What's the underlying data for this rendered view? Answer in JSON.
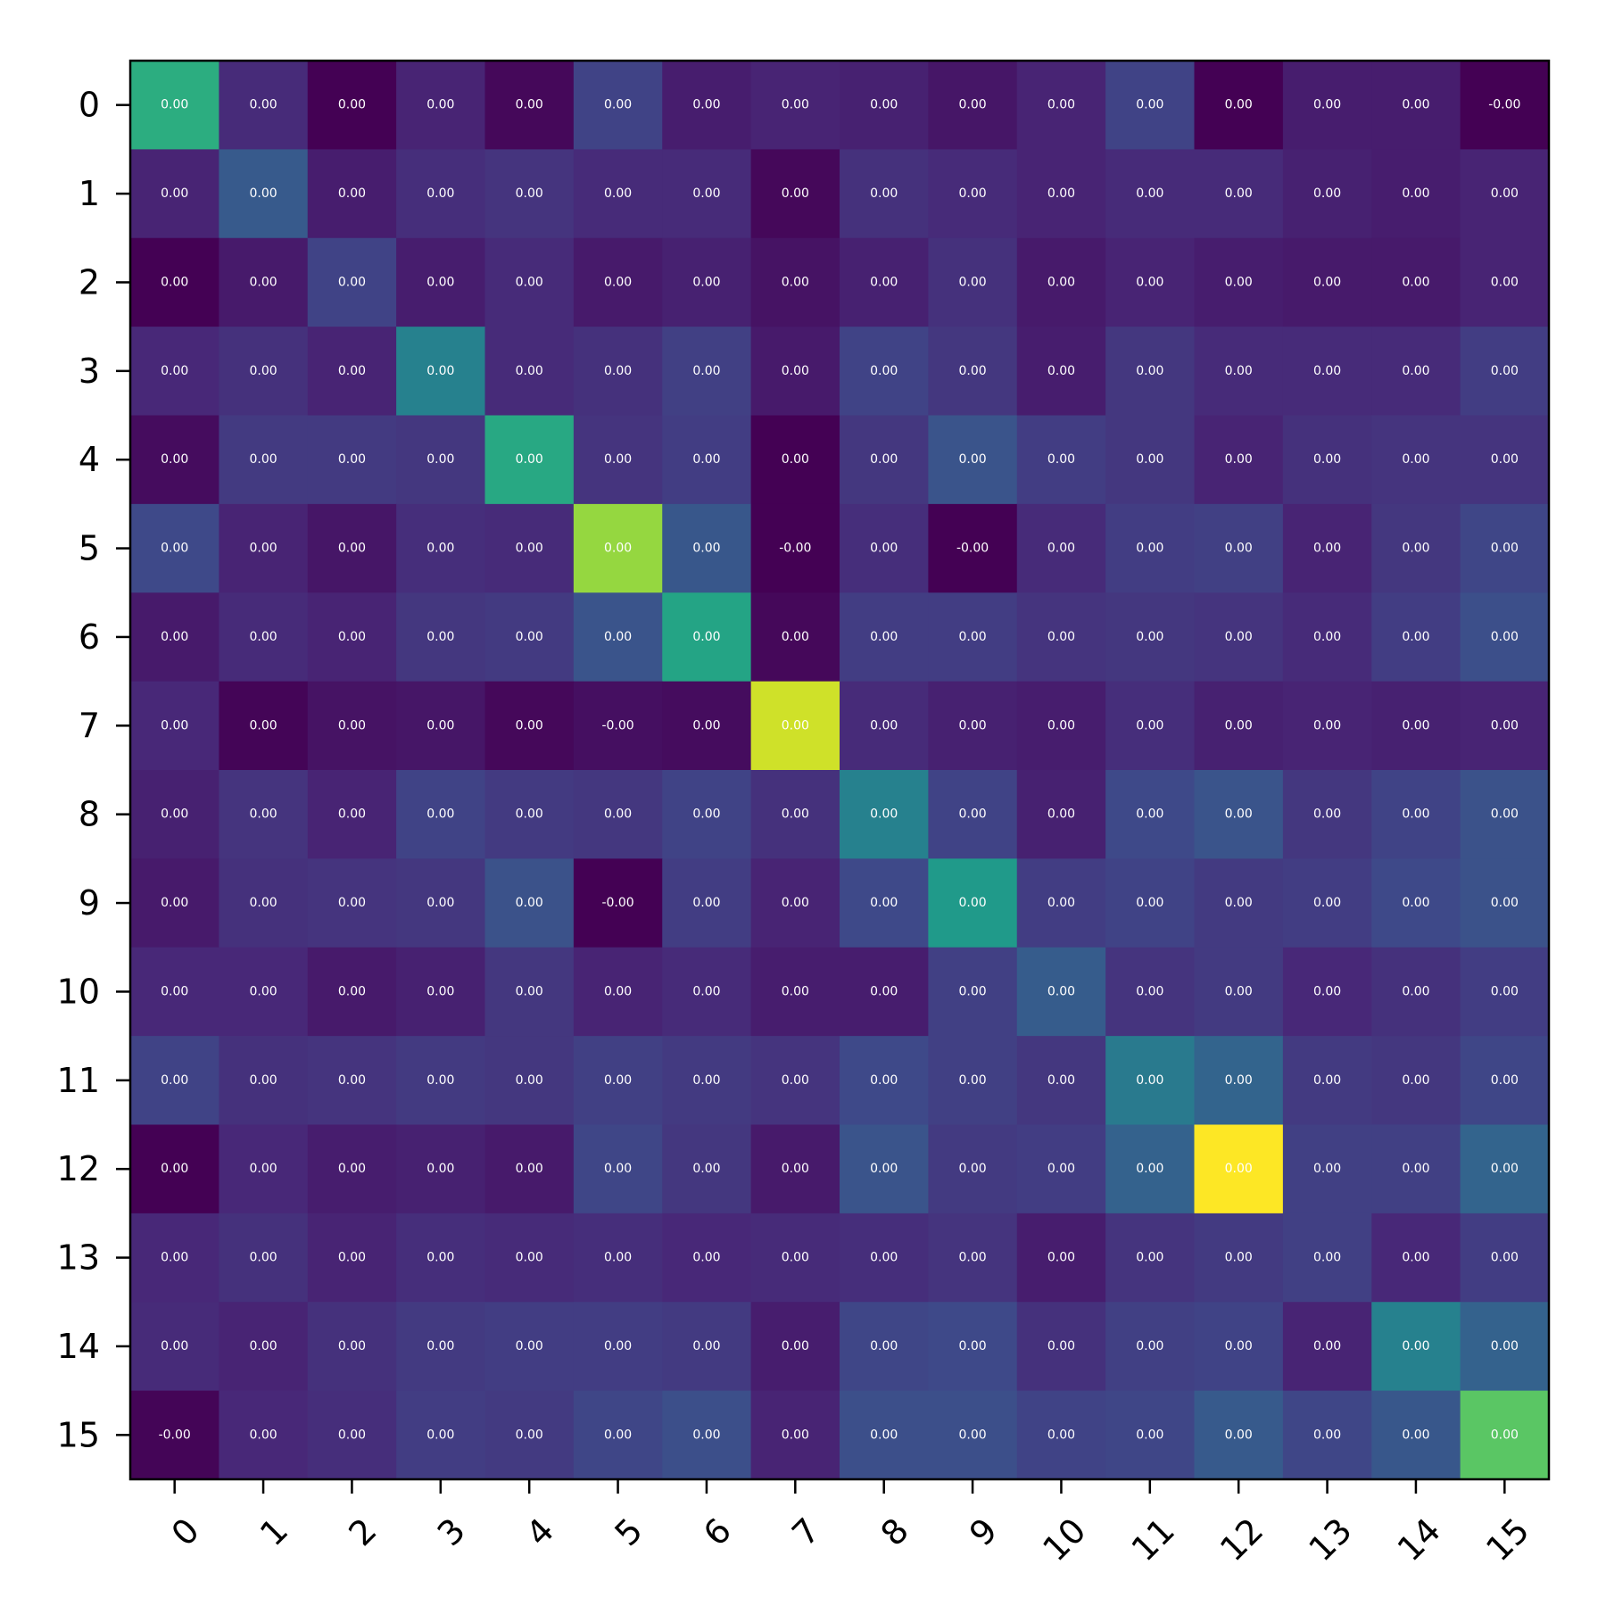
{
  "chart_data": {
    "type": "heatmap",
    "colormap": "viridis",
    "x_categories": [
      "0",
      "1",
      "2",
      "3",
      "4",
      "5",
      "6",
      "7",
      "8",
      "9",
      "10",
      "11",
      "12",
      "13",
      "14",
      "15"
    ],
    "y_categories": [
      "0",
      "1",
      "2",
      "3",
      "4",
      "5",
      "6",
      "7",
      "8",
      "9",
      "10",
      "11",
      "12",
      "13",
      "14",
      "15"
    ],
    "color_intensity": [
      [
        0.62,
        0.12,
        0.0,
        0.1,
        0.02,
        0.2,
        0.08,
        0.1,
        0.09,
        0.06,
        0.1,
        0.2,
        0.0,
        0.08,
        0.08,
        0.0
      ],
      [
        0.1,
        0.28,
        0.08,
        0.13,
        0.15,
        0.12,
        0.12,
        0.02,
        0.14,
        0.12,
        0.1,
        0.12,
        0.12,
        0.09,
        0.08,
        0.1
      ],
      [
        0.0,
        0.07,
        0.2,
        0.08,
        0.12,
        0.07,
        0.09,
        0.05,
        0.09,
        0.14,
        0.07,
        0.1,
        0.08,
        0.07,
        0.07,
        0.1
      ],
      [
        0.11,
        0.14,
        0.1,
        0.44,
        0.12,
        0.14,
        0.19,
        0.07,
        0.2,
        0.16,
        0.08,
        0.16,
        0.12,
        0.12,
        0.12,
        0.18
      ],
      [
        0.03,
        0.17,
        0.17,
        0.16,
        0.6,
        0.15,
        0.18,
        0.0,
        0.16,
        0.26,
        0.18,
        0.16,
        0.1,
        0.14,
        0.15,
        0.15
      ],
      [
        0.22,
        0.1,
        0.06,
        0.13,
        0.12,
        0.84,
        0.27,
        0.0,
        0.13,
        0.0,
        0.12,
        0.18,
        0.19,
        0.1,
        0.16,
        0.21
      ],
      [
        0.07,
        0.12,
        0.1,
        0.16,
        0.17,
        0.26,
        0.58,
        0.02,
        0.18,
        0.18,
        0.15,
        0.16,
        0.15,
        0.12,
        0.18,
        0.24
      ],
      [
        0.11,
        0.01,
        0.05,
        0.06,
        0.02,
        0.04,
        0.03,
        0.93,
        0.12,
        0.09,
        0.08,
        0.13,
        0.09,
        0.1,
        0.09,
        0.1
      ],
      [
        0.09,
        0.15,
        0.1,
        0.2,
        0.17,
        0.16,
        0.2,
        0.14,
        0.44,
        0.2,
        0.09,
        0.22,
        0.26,
        0.16,
        0.2,
        0.25
      ],
      [
        0.07,
        0.14,
        0.15,
        0.16,
        0.25,
        0.0,
        0.18,
        0.1,
        0.22,
        0.54,
        0.18,
        0.2,
        0.17,
        0.18,
        0.22,
        0.25
      ],
      [
        0.11,
        0.11,
        0.07,
        0.09,
        0.16,
        0.1,
        0.12,
        0.08,
        0.08,
        0.19,
        0.29,
        0.15,
        0.17,
        0.11,
        0.14,
        0.18
      ],
      [
        0.2,
        0.14,
        0.15,
        0.17,
        0.16,
        0.19,
        0.17,
        0.15,
        0.22,
        0.19,
        0.16,
        0.41,
        0.32,
        0.17,
        0.16,
        0.21
      ],
      [
        0.0,
        0.11,
        0.08,
        0.09,
        0.07,
        0.21,
        0.16,
        0.07,
        0.26,
        0.17,
        0.18,
        0.31,
        1.0,
        0.19,
        0.19,
        0.32
      ],
      [
        0.11,
        0.14,
        0.1,
        0.13,
        0.12,
        0.13,
        0.11,
        0.12,
        0.13,
        0.15,
        0.08,
        0.15,
        0.17,
        0.19,
        0.11,
        0.18
      ],
      [
        0.12,
        0.1,
        0.14,
        0.17,
        0.18,
        0.18,
        0.17,
        0.08,
        0.21,
        0.22,
        0.14,
        0.19,
        0.2,
        0.1,
        0.44,
        0.31
      ],
      [
        0.01,
        0.11,
        0.13,
        0.18,
        0.17,
        0.21,
        0.24,
        0.1,
        0.24,
        0.24,
        0.2,
        0.21,
        0.28,
        0.21,
        0.27,
        0.74
      ]
    ],
    "cell_labels": [
      [
        "0.00",
        "0.00",
        "0.00",
        "0.00",
        "0.00",
        "0.00",
        "0.00",
        "0.00",
        "0.00",
        "0.00",
        "0.00",
        "0.00",
        "0.00",
        "0.00",
        "0.00",
        "-0.00"
      ],
      [
        "0.00",
        "0.00",
        "0.00",
        "0.00",
        "0.00",
        "0.00",
        "0.00",
        "0.00",
        "0.00",
        "0.00",
        "0.00",
        "0.00",
        "0.00",
        "0.00",
        "0.00",
        "0.00"
      ],
      [
        "0.00",
        "0.00",
        "0.00",
        "0.00",
        "0.00",
        "0.00",
        "0.00",
        "0.00",
        "0.00",
        "0.00",
        "0.00",
        "0.00",
        "0.00",
        "0.00",
        "0.00",
        "0.00"
      ],
      [
        "0.00",
        "0.00",
        "0.00",
        "0.00",
        "0.00",
        "0.00",
        "0.00",
        "0.00",
        "0.00",
        "0.00",
        "0.00",
        "0.00",
        "0.00",
        "0.00",
        "0.00",
        "0.00"
      ],
      [
        "0.00",
        "0.00",
        "0.00",
        "0.00",
        "0.00",
        "0.00",
        "0.00",
        "0.00",
        "0.00",
        "0.00",
        "0.00",
        "0.00",
        "0.00",
        "0.00",
        "0.00",
        "0.00"
      ],
      [
        "0.00",
        "0.00",
        "0.00",
        "0.00",
        "0.00",
        "0.00",
        "0.00",
        "-0.00",
        "0.00",
        "-0.00",
        "0.00",
        "0.00",
        "0.00",
        "0.00",
        "0.00",
        "0.00"
      ],
      [
        "0.00",
        "0.00",
        "0.00",
        "0.00",
        "0.00",
        "0.00",
        "0.00",
        "0.00",
        "0.00",
        "0.00",
        "0.00",
        "0.00",
        "0.00",
        "0.00",
        "0.00",
        "0.00"
      ],
      [
        "0.00",
        "0.00",
        "0.00",
        "0.00",
        "0.00",
        "-0.00",
        "0.00",
        "0.00",
        "0.00",
        "0.00",
        "0.00",
        "0.00",
        "0.00",
        "0.00",
        "0.00",
        "0.00"
      ],
      [
        "0.00",
        "0.00",
        "0.00",
        "0.00",
        "0.00",
        "0.00",
        "0.00",
        "0.00",
        "0.00",
        "0.00",
        "0.00",
        "0.00",
        "0.00",
        "0.00",
        "0.00",
        "0.00"
      ],
      [
        "0.00",
        "0.00",
        "0.00",
        "0.00",
        "0.00",
        "-0.00",
        "0.00",
        "0.00",
        "0.00",
        "0.00",
        "0.00",
        "0.00",
        "0.00",
        "0.00",
        "0.00",
        "0.00"
      ],
      [
        "0.00",
        "0.00",
        "0.00",
        "0.00",
        "0.00",
        "0.00",
        "0.00",
        "0.00",
        "0.00",
        "0.00",
        "0.00",
        "0.00",
        "0.00",
        "0.00",
        "0.00",
        "0.00"
      ],
      [
        "0.00",
        "0.00",
        "0.00",
        "0.00",
        "0.00",
        "0.00",
        "0.00",
        "0.00",
        "0.00",
        "0.00",
        "0.00",
        "0.00",
        "0.00",
        "0.00",
        "0.00",
        "0.00"
      ],
      [
        "0.00",
        "0.00",
        "0.00",
        "0.00",
        "0.00",
        "0.00",
        "0.00",
        "0.00",
        "0.00",
        "0.00",
        "0.00",
        "0.00",
        "0.00",
        "0.00",
        "0.00",
        "0.00"
      ],
      [
        "0.00",
        "0.00",
        "0.00",
        "0.00",
        "0.00",
        "0.00",
        "0.00",
        "0.00",
        "0.00",
        "0.00",
        "0.00",
        "0.00",
        "0.00",
        "0.00",
        "0.00",
        "0.00"
      ],
      [
        "0.00",
        "0.00",
        "0.00",
        "0.00",
        "0.00",
        "0.00",
        "0.00",
        "0.00",
        "0.00",
        "0.00",
        "0.00",
        "0.00",
        "0.00",
        "0.00",
        "0.00",
        "0.00"
      ],
      [
        "-0.00",
        "0.00",
        "0.00",
        "0.00",
        "0.00",
        "0.00",
        "0.00",
        "0.00",
        "0.00",
        "0.00",
        "0.00",
        "0.00",
        "0.00",
        "0.00",
        "0.00",
        "0.00"
      ]
    ],
    "title": "",
    "xlabel": "",
    "ylabel": "",
    "grid": false,
    "colorbar": false
  }
}
